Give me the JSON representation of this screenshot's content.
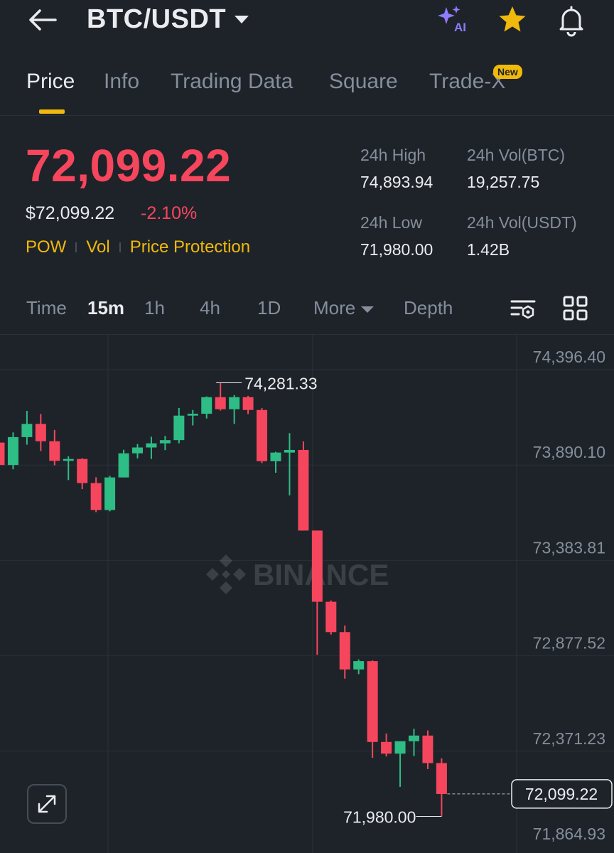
{
  "header": {
    "pair": "BTC/USDT",
    "icons": [
      "back-arrow-icon",
      "ai-sparkle-icon",
      "star-icon",
      "bell-icon"
    ],
    "ai_label": "AI"
  },
  "tabs": [
    {
      "label": "Price",
      "active": true
    },
    {
      "label": "Info",
      "active": false
    },
    {
      "label": "Trading Data",
      "active": false
    },
    {
      "label": "Square",
      "active": false
    },
    {
      "label": "Trade-X",
      "active": false,
      "badge": "New"
    }
  ],
  "ticker": {
    "last_price": "72,099.22",
    "usd_price": "$72,099.22",
    "change_pct": "-2.10%",
    "tags": [
      "POW",
      "Vol",
      "Price Protection"
    ],
    "stats": {
      "high_label": "24h High",
      "high": "74,893.94",
      "vol_btc_label": "24h Vol(BTC)",
      "vol_btc": "19,257.75",
      "low_label": "24h Low",
      "low": "71,980.00",
      "vol_usdt_label": "24h Vol(USDT)",
      "vol_usdt": "1.42B"
    }
  },
  "intervals": {
    "items": [
      "Time",
      "15m",
      "1h",
      "4h",
      "1D",
      "More",
      "Depth"
    ],
    "active": "15m",
    "tool_icons": [
      "indicator-settings-icon",
      "layout-grid-icon"
    ]
  },
  "colors": {
    "up": "#2ebd85",
    "down": "#f6465d",
    "accent": "#f0b90b",
    "background": "#1e2329",
    "muted": "#848e9c"
  },
  "chart_data": {
    "type": "candlestick",
    "interval": "15m",
    "watermark": "BINANCE",
    "y_ticks": [
      "74,396.40",
      "73,890.10",
      "73,383.81",
      "72,877.52",
      "72,371.23",
      "71,864.93"
    ],
    "y_tick_values": [
      74396.4,
      73890.1,
      73383.81,
      72877.52,
      72371.23,
      71864.93
    ],
    "high_marker": "74,281.33",
    "high_marker_value": 74281.33,
    "low_marker": "71,980.00",
    "low_marker_value": 71980.0,
    "last_price_label": "72,099.22",
    "last_price_value": 72099.22,
    "candles": [
      {
        "o": 73964,
        "h": 74018,
        "c": 73845,
        "l": 73770
      },
      {
        "o": 73845,
        "h": 74018,
        "c": 73993,
        "l": 73822
      },
      {
        "o": 73993,
        "h": 74132,
        "c": 74063,
        "l": 73953
      },
      {
        "o": 74063,
        "h": 74116,
        "c": 73971,
        "l": 73919
      },
      {
        "o": 73971,
        "h": 74031,
        "c": 73867,
        "l": 73843
      },
      {
        "o": 73867,
        "h": 73891,
        "c": 73877,
        "l": 73765
      },
      {
        "o": 73877,
        "h": 73881,
        "c": 73749,
        "l": 73717
      },
      {
        "o": 73749,
        "h": 73780,
        "c": 73606,
        "l": 73595
      },
      {
        "o": 73606,
        "h": 73787,
        "c": 73779,
        "l": 73599
      },
      {
        "o": 73779,
        "h": 73926,
        "c": 73907,
        "l": 73779
      },
      {
        "o": 73907,
        "h": 73956,
        "c": 73938,
        "l": 73880
      },
      {
        "o": 73938,
        "h": 73995,
        "c": 73960,
        "l": 73877
      },
      {
        "o": 73960,
        "h": 73999,
        "c": 73977,
        "l": 73924
      },
      {
        "o": 73977,
        "h": 74148,
        "c": 74107,
        "l": 73960
      },
      {
        "o": 74107,
        "h": 74137,
        "c": 74117,
        "l": 74055
      },
      {
        "o": 74117,
        "h": 74209,
        "c": 74205,
        "l": 74092
      },
      {
        "o": 74205,
        "h": 74281,
        "c": 74141,
        "l": 74134
      },
      {
        "o": 74141,
        "h": 74216,
        "c": 74205,
        "l": 74063
      },
      {
        "o": 74205,
        "h": 74212,
        "c": 74137,
        "l": 74115
      },
      {
        "o": 74137,
        "h": 74147,
        "c": 73865,
        "l": 73855
      },
      {
        "o": 73865,
        "h": 73915,
        "c": 73911,
        "l": 73804
      },
      {
        "o": 73911,
        "h": 74014,
        "c": 73925,
        "l": 73684
      },
      {
        "o": 73925,
        "h": 73970,
        "c": 73497,
        "l": 73497
      },
      {
        "o": 73497,
        "h": 73497,
        "c": 73119,
        "l": 72838
      },
      {
        "o": 73119,
        "h": 73126,
        "c": 72958,
        "l": 72945
      },
      {
        "o": 72958,
        "h": 72993,
        "c": 72760,
        "l": 72711
      },
      {
        "o": 72760,
        "h": 72813,
        "c": 72804,
        "l": 72735
      },
      {
        "o": 72804,
        "h": 72808,
        "c": 72375,
        "l": 72291
      },
      {
        "o": 72375,
        "h": 72420,
        "c": 72313,
        "l": 72298
      },
      {
        "o": 72313,
        "h": 72376,
        "c": 72379,
        "l": 72137
      },
      {
        "o": 72379,
        "h": 72445,
        "c": 72409,
        "l": 72300
      },
      {
        "o": 72409,
        "h": 72436,
        "c": 72263,
        "l": 72231
      },
      {
        "o": 72263,
        "h": 72288,
        "c": 72099,
        "l": 71980
      }
    ]
  }
}
